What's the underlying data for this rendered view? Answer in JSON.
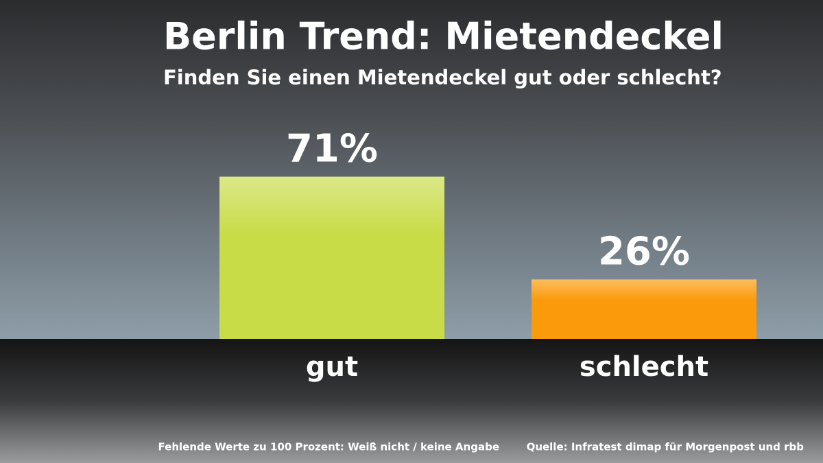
{
  "chart_data": {
    "type": "bar",
    "title": "Berlin Trend: Mietendeckel",
    "subtitle": "Finden Sie einen Mietendeckel gut oder schlecht?",
    "categories": [
      "gut",
      "schlecht"
    ],
    "values": [
      71,
      26
    ],
    "value_labels": [
      "71%",
      "26%"
    ],
    "colors": [
      "#c8dc48",
      "#fb9a0a"
    ],
    "note": "Fehlende Werte zu 100 Prozent: Weiß nicht / keine Angabe",
    "source": "Quelle: Infratest dimap für Morgenpost und rbb"
  }
}
